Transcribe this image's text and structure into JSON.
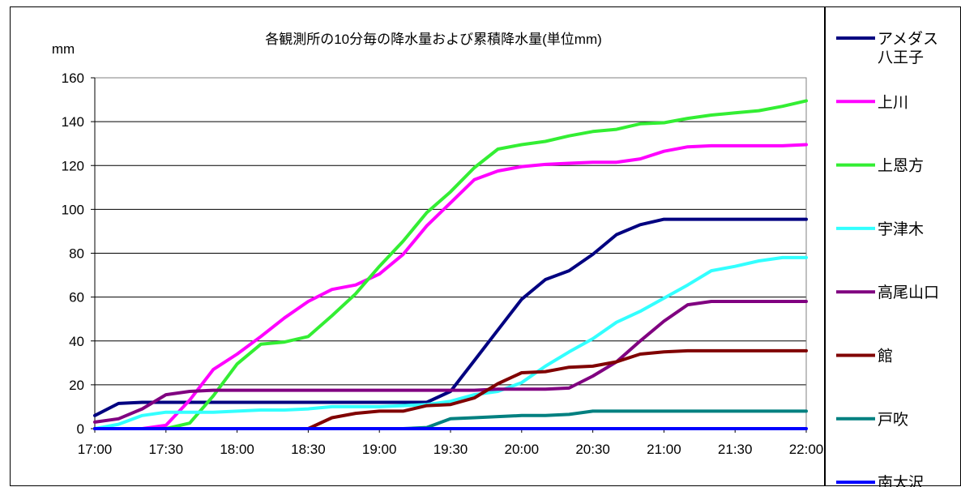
{
  "chart_data": {
    "type": "line",
    "title": "各観測所の10分毎の降水量および累積降水量(単位mm)",
    "ylabel": "mm",
    "ylim": [
      0,
      160
    ],
    "yticks": [
      0,
      20,
      40,
      60,
      80,
      100,
      120,
      140,
      160
    ],
    "xtick_labels": [
      "17:00",
      "17:30",
      "18:00",
      "18:30",
      "19:00",
      "19:30",
      "20:00",
      "20:30",
      "21:00",
      "21:30",
      "22:00"
    ],
    "x": [
      "17:00",
      "17:10",
      "17:20",
      "17:30",
      "17:40",
      "17:50",
      "18:00",
      "18:10",
      "18:20",
      "18:30",
      "18:40",
      "18:50",
      "19:00",
      "19:10",
      "19:20",
      "19:30",
      "19:40",
      "19:50",
      "20:00",
      "20:10",
      "20:20",
      "20:30",
      "20:40",
      "20:50",
      "21:00",
      "21:10",
      "21:20",
      "21:30",
      "21:40",
      "21:50",
      "22:00"
    ],
    "grid": "horizontal",
    "legend_position": "right",
    "series": [
      {
        "name": "アメダス八王子",
        "color": "#000080",
        "values": [
          6,
          11.5,
          12,
          12,
          12,
          12,
          12,
          12,
          12,
          12,
          12,
          12,
          12,
          12,
          12,
          17,
          31,
          45,
          59,
          68,
          72,
          79.5,
          88.5,
          93,
          95.5,
          95.5,
          95.5,
          95.5,
          95.5,
          95.5,
          95.5
        ]
      },
      {
        "name": "上川",
        "color": "#ff00ff",
        "values": [
          0,
          0,
          0,
          1.5,
          13,
          27,
          34,
          42,
          50.5,
          58,
          63.5,
          65.5,
          70.5,
          79.5,
          92.5,
          103,
          113.5,
          117.5,
          119.5,
          120.5,
          121,
          121.5,
          121.5,
          123,
          126.5,
          128.5,
          129,
          129,
          129,
          129,
          129.5
        ]
      },
      {
        "name": "上恩方",
        "color": "#33ee33",
        "values": [
          0,
          0,
          0,
          0,
          2.5,
          15,
          29.5,
          38.5,
          39.5,
          42,
          51.5,
          61.5,
          74,
          85.5,
          98.5,
          108,
          119,
          127.5,
          129.5,
          131,
          133.5,
          135.5,
          136.5,
          139,
          139.5,
          141.5,
          143,
          144,
          145,
          147,
          149.5
        ]
      },
      {
        "name": "宇津木",
        "color": "#33ffff",
        "values": [
          0,
          2,
          6,
          7.5,
          7.5,
          7.5,
          8,
          8.5,
          8.5,
          9,
          10,
          10,
          10,
          10.5,
          11,
          12.5,
          15.5,
          17,
          21,
          28.5,
          35,
          41,
          48.5,
          53.5,
          59.5,
          65.5,
          72,
          74,
          76.5,
          78,
          78
        ]
      },
      {
        "name": "高尾山口",
        "color": "#800080",
        "values": [
          3,
          4.5,
          9,
          15.5,
          17,
          17.5,
          17.5,
          17.5,
          17.5,
          17.5,
          17.5,
          17.5,
          17.5,
          17.5,
          17.5,
          17.5,
          17.5,
          18,
          18,
          18,
          18.5,
          24,
          30.5,
          40,
          49,
          56.5,
          58,
          58,
          58,
          58,
          58
        ]
      },
      {
        "name": "館",
        "color": "#800000",
        "values": [
          0,
          0,
          0,
          0,
          0,
          0,
          0,
          0,
          0,
          0,
          5,
          7,
          8,
          8,
          10.5,
          11,
          14,
          20.5,
          25.5,
          26,
          28,
          28.5,
          30.5,
          34,
          35,
          35.5,
          35.5,
          35.5,
          35.5,
          35.5,
          35.5
        ]
      },
      {
        "name": "戸吹",
        "color": "#008080",
        "values": [
          0,
          0,
          0,
          0,
          0,
          0,
          0,
          0,
          0,
          0,
          0,
          0,
          0,
          0,
          0.5,
          4.5,
          5,
          5.5,
          6,
          6,
          6.5,
          8,
          8,
          8,
          8,
          8,
          8,
          8,
          8,
          8,
          8
        ]
      },
      {
        "name": "南大沢",
        "color": "#0000ff",
        "values": [
          0,
          0,
          0,
          0,
          0,
          0,
          0,
          0,
          0,
          0,
          0,
          0,
          0,
          0,
          0,
          0,
          0,
          0,
          0,
          0,
          0,
          0,
          0,
          0,
          0,
          0,
          0,
          0,
          0,
          0,
          0
        ]
      }
    ]
  }
}
